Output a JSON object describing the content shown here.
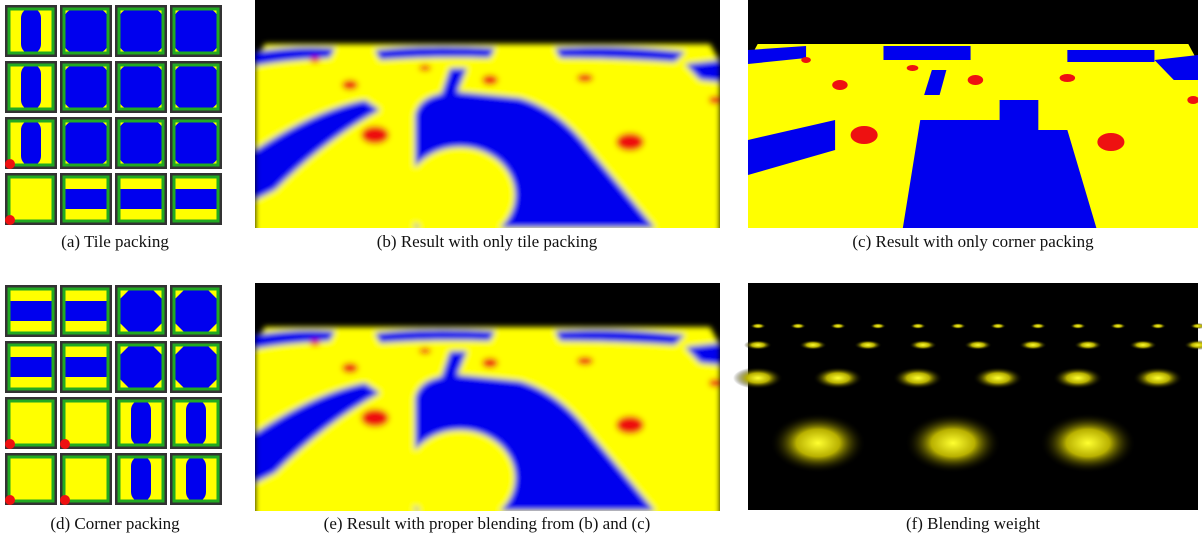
{
  "panels": [
    {
      "caption": "(a) Tile packing"
    },
    {
      "caption": "(b) Result with only tile packing"
    },
    {
      "caption": "(c) Result with only corner packing"
    },
    {
      "caption": "(d) Corner packing"
    },
    {
      "caption": "(e) Result with proper blending from (b) and (c)"
    },
    {
      "caption": "(f) Blending weight"
    }
  ]
}
